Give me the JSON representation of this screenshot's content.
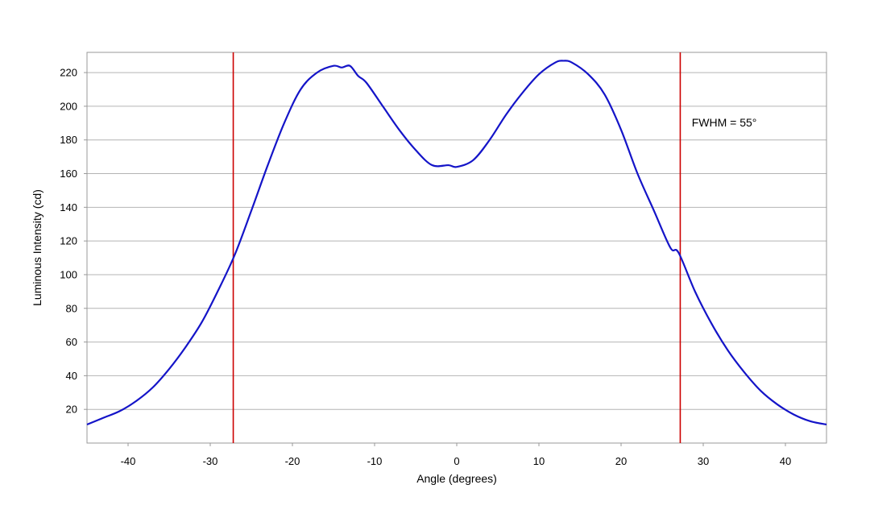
{
  "chart_data": {
    "type": "line",
    "title": "",
    "xlabel": "Angle (degrees)",
    "ylabel": "Luminous Intensity (cd)",
    "xlim": [
      -45,
      45
    ],
    "ylim": [
      0,
      232
    ],
    "x_ticks": [
      -40,
      -30,
      -20,
      -10,
      0,
      10,
      20,
      30,
      40
    ],
    "x_tick_labels": [
      "-40",
      "-30",
      "-20",
      "-10",
      "0",
      "10",
      "20",
      "30",
      "40"
    ],
    "y_ticks": [
      20,
      40,
      60,
      80,
      100,
      120,
      140,
      160,
      180,
      200,
      220
    ],
    "y_tick_labels": [
      "20",
      "40",
      "60",
      "80",
      "100",
      "120",
      "140",
      "160",
      "180",
      "200",
      "220"
    ],
    "grid": "horizontal",
    "series": [
      {
        "color": "#1414c8",
        "x": [
          -45,
          -43,
          -41,
          -39,
          -37,
          -35,
          -33,
          -31,
          -29,
          -27,
          -25,
          -23,
          -21,
          -19,
          -17,
          -15,
          -14,
          -13,
          -12,
          -11,
          -9,
          -7,
          -5,
          -3,
          -1,
          0,
          2,
          4,
          6,
          8,
          10,
          12,
          13,
          14,
          16,
          18,
          20,
          22,
          24,
          26,
          27,
          29,
          31,
          33,
          35,
          37,
          39,
          41,
          43,
          45
        ],
        "y": [
          11,
          15,
          19,
          25,
          33,
          44,
          57,
          72,
          91,
          112,
          138,
          165,
          190,
          210,
          220,
          224,
          223,
          224,
          218,
          214,
          200,
          186,
          174,
          165,
          165,
          164,
          168,
          180,
          195,
          208,
          219,
          226,
          227,
          226,
          219,
          207,
          186,
          160,
          138,
          116,
          113,
          90,
          71,
          55,
          42,
          31,
          23,
          17,
          13,
          11
        ]
      }
    ],
    "vlines": [
      {
        "x": -27.2,
        "color": "#cc0000"
      },
      {
        "x": 27.2,
        "color": "#cc0000"
      }
    ],
    "annotations": [
      {
        "text": "FWHM = 55°",
        "x": 28.6,
        "y": 188
      }
    ]
  }
}
